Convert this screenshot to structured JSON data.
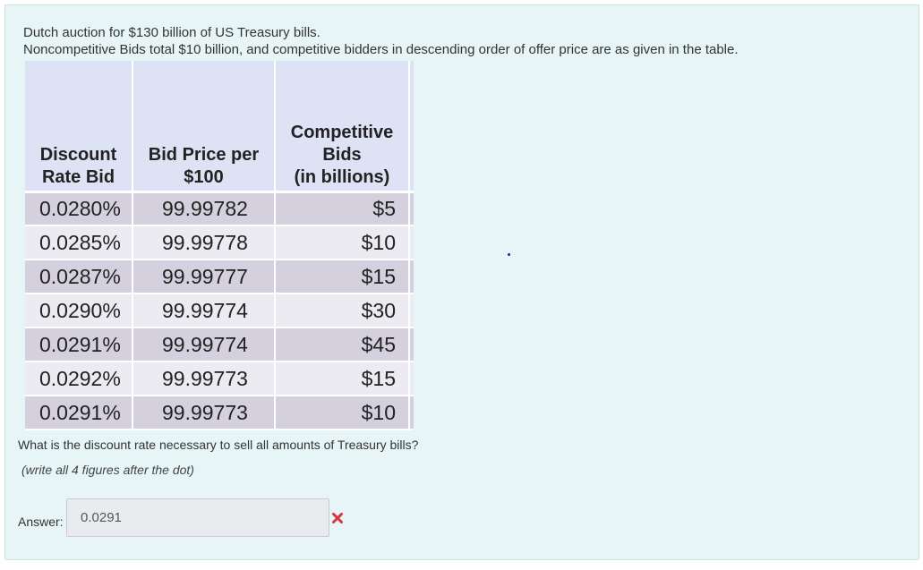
{
  "intro": {
    "line1": "Dutch auction for $130 billion of US Treasury bills.",
    "line2": "Noncompetitive Bids total $10 billion, and competitive bidders in descending order of offer price are as given in the table."
  },
  "table": {
    "headers": [
      [
        "Discount",
        "Rate Bid"
      ],
      [
        "Bid Price per",
        "$100"
      ],
      [
        "Competitive",
        "Bids",
        "(in billions)"
      ]
    ],
    "rows": [
      [
        "0.0280%",
        "99.99782",
        "$5"
      ],
      [
        "0.0285%",
        "99.99778",
        "$10"
      ],
      [
        "0.0287%",
        "99.99777",
        "$15"
      ],
      [
        "0.0290%",
        "99.99774",
        "$30"
      ],
      [
        "0.0291%",
        "99.99774",
        "$45"
      ],
      [
        "0.0292%",
        "99.99773",
        "$15"
      ],
      [
        "0.0291%",
        "99.99773",
        "$10"
      ]
    ]
  },
  "question": "What is the discount rate necessary to sell all amounts of Treasury bills?",
  "hint": "(write all 4 figures after the dot)",
  "answer": {
    "label": "Answer:",
    "value": "0.0291",
    "status": "incorrect",
    "status_icon": "cross-icon",
    "status_color": "#d9363e"
  },
  "colors": {
    "panel_bg": "#e7f5f6",
    "header_bg": "#dde2f4",
    "row_dark": "#d4d0dd",
    "row_light": "#ecebf1"
  }
}
